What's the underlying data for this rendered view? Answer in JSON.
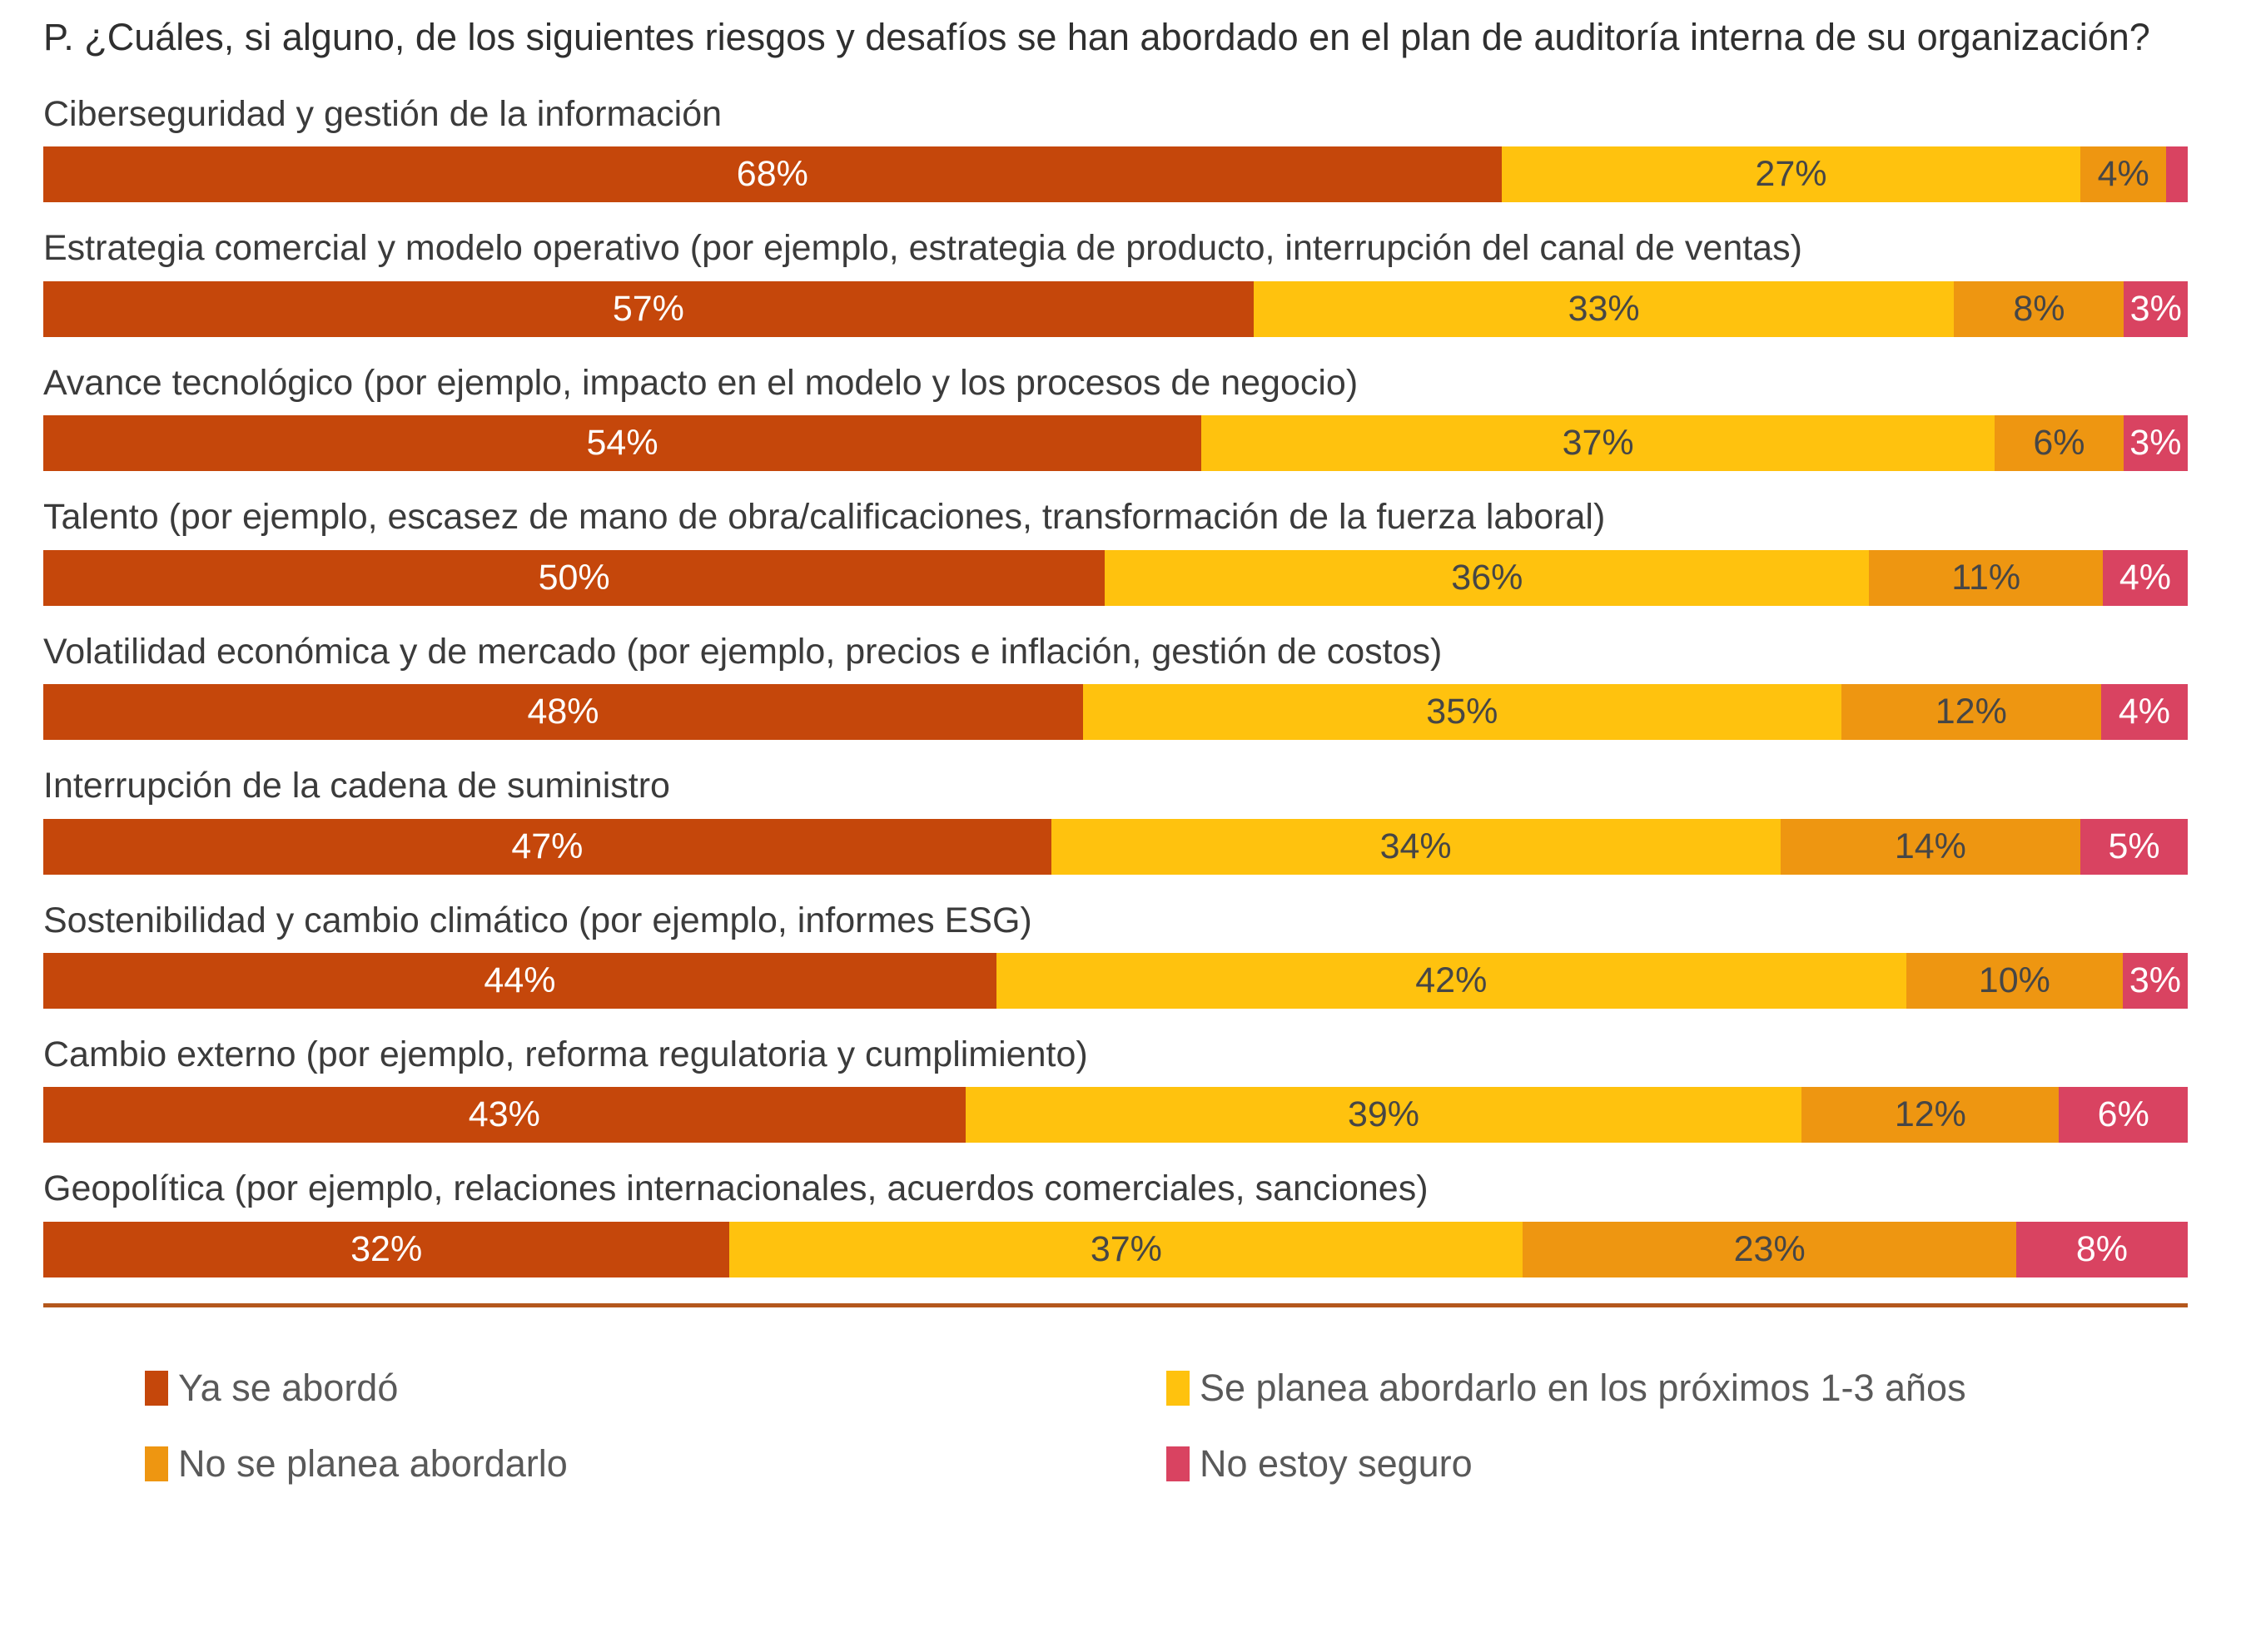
{
  "title": "P. ¿Cuáles, si alguno, de los siguientes riesgos y desafíos se han abordado en el plan de auditoría interna de su organización?",
  "colors": {
    "already_addressed": "#c5470b",
    "planned_1_3_years": "#ffc20e",
    "not_planned": "#ee9611",
    "not_sure": "#d94361",
    "divider": "#b4571c",
    "label_on_light": "#464646",
    "label_on_dark": "#ffffff"
  },
  "chart_data": {
    "type": "bar",
    "orientation": "horizontal-stacked",
    "title": "P. ¿Cuáles, si alguno, de los siguientes riesgos y desafíos se han abordado en el plan de auditoría interna de su organización?",
    "value_suffix": "%",
    "label_min_value": 2,
    "legend_position": "bottom",
    "categories": [
      "Ciberseguridad y gestión de la información",
      "Estrategia comercial y modelo operativo (por ejemplo, estrategia de producto, interrupción del canal de ventas)",
      "Avance tecnológico (por ejemplo, impacto en el modelo y los procesos de negocio)",
      "Talento (por ejemplo, escasez de mano de obra/calificaciones, transformación de la fuerza laboral)",
      "Volatilidad económica y de mercado (por ejemplo, precios e inflación, gestión de costos)",
      "Interrupción de la cadena de suministro",
      "Sostenibilidad y cambio climático (por ejemplo, informes ESG)",
      "Cambio externo (por ejemplo, reforma regulatoria y cumplimiento)",
      "Geopolítica (por ejemplo, relaciones internacionales, acuerdos comerciales, sanciones)"
    ],
    "series": [
      {
        "name": "Ya se abordó",
        "color": "#c5470b",
        "text_color": "#ffffff",
        "values": [
          68,
          57,
          54,
          50,
          48,
          47,
          44,
          43,
          32
        ]
      },
      {
        "name": "Se planea abordarlo en los próximos 1-3 años",
        "color": "#ffc20e",
        "text_color": "#464646",
        "values": [
          27,
          33,
          37,
          36,
          35,
          34,
          42,
          39,
          37
        ]
      },
      {
        "name": "No se planea abordarlo",
        "color": "#ee9611",
        "text_color": "#464646",
        "values": [
          4,
          8,
          6,
          11,
          12,
          14,
          10,
          12,
          23
        ]
      },
      {
        "name": "No estoy seguro",
        "color": "#d94361",
        "text_color": "#ffffff",
        "values": [
          1,
          3,
          3,
          4,
          4,
          5,
          3,
          6,
          8
        ]
      }
    ]
  }
}
